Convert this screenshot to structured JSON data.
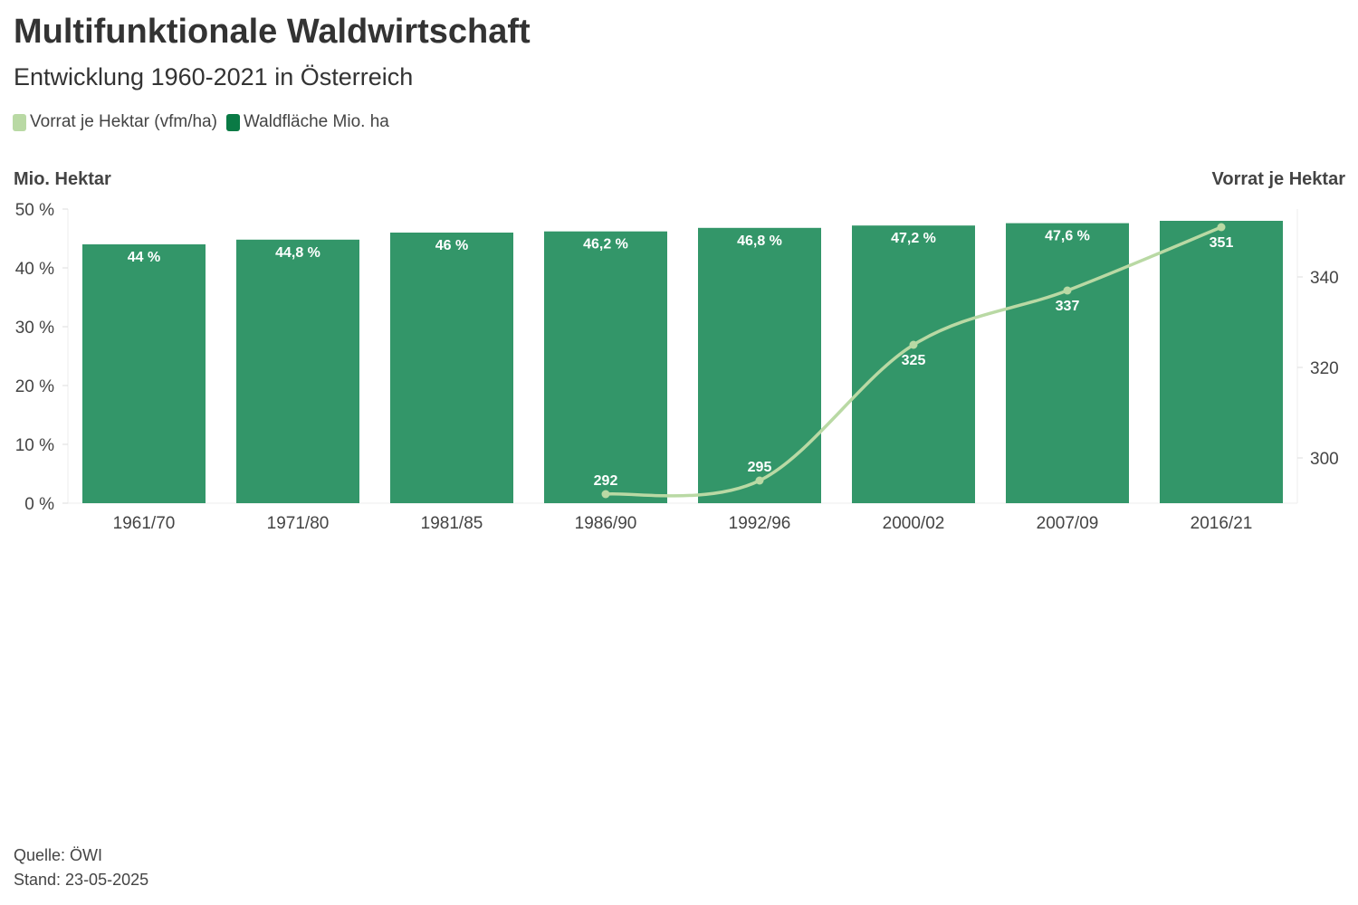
{
  "title": "Multifunktionale Waldwirtschaft",
  "subtitle": "Entwicklung 1960-2021 in Österreich",
  "legend": [
    {
      "label": "Vorrat je Hektar (vfm/ha)",
      "color": "#b9d9a4"
    },
    {
      "label": "Waldfläche Mio. ha",
      "color": "#0a7a45"
    }
  ],
  "footer": {
    "source": "Quelle: ÖWI",
    "date": "Stand: 23-05-2025"
  },
  "chart_data": {
    "type": "bar",
    "categories": [
      "1961/70",
      "1971/80",
      "1981/85",
      "1986/90",
      "1992/96",
      "2000/02",
      "2007/09",
      "2016/21"
    ],
    "series": [
      {
        "name": "Waldfläche Mio. ha",
        "type": "bar",
        "axis": "left",
        "color": "#339669",
        "values": [
          44,
          44.8,
          46,
          46.2,
          46.8,
          47.2,
          47.6,
          48
        ],
        "labels": [
          "44 %",
          "44,8 %",
          "46 %",
          "46,2 %",
          "46,8 %",
          "47,2 %",
          "47,6 %",
          ""
        ]
      },
      {
        "name": "Vorrat je Hektar (vfm/ha)",
        "type": "line",
        "axis": "right",
        "color": "#b9d9a4",
        "values": [
          null,
          null,
          null,
          292,
          295,
          325,
          337,
          351
        ],
        "labels": [
          "",
          "",
          "",
          "292",
          "295",
          "325",
          "337",
          "351"
        ]
      }
    ],
    "ylabel": "Mio. Hektar",
    "y2label": "Vorrat je Hektar",
    "ylim": [
      0,
      50
    ],
    "yticks": [
      "0 %",
      "10 %",
      "20 %",
      "30 %",
      "40 %",
      "50 %"
    ],
    "ytick_values": [
      0,
      10,
      20,
      30,
      40,
      50
    ],
    "y2lim": [
      290,
      355
    ],
    "y2ticks": [
      "300",
      "320",
      "340"
    ],
    "y2tick_values": [
      300,
      320,
      340
    ]
  }
}
